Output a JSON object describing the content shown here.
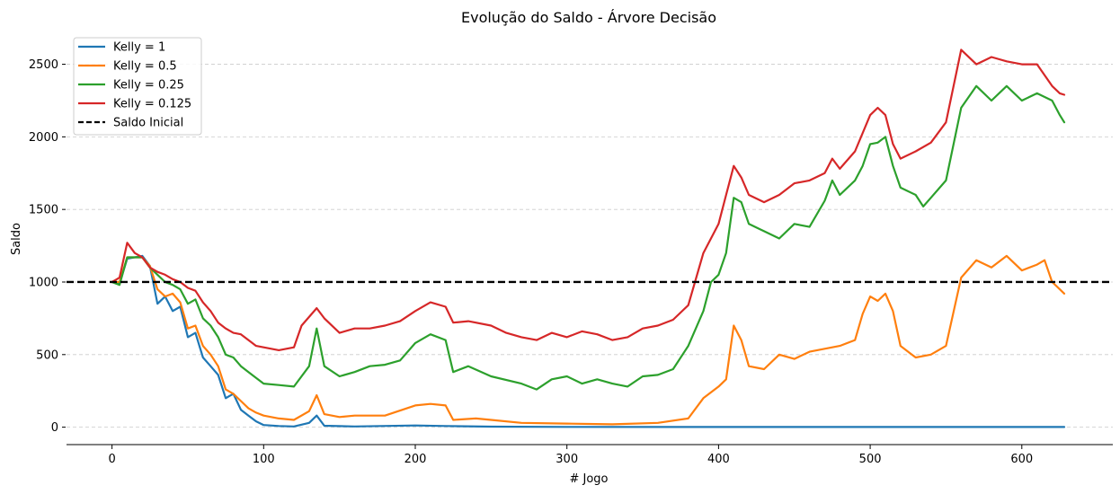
{
  "chart_data": {
    "type": "line",
    "title": "Evolução do Saldo - Árvore Decisão",
    "xlabel": "# Jogo",
    "ylabel": "Saldo",
    "xlim": [
      -30,
      660
    ],
    "ylim": [
      -120,
      2720
    ],
    "xticks": [
      0,
      100,
      200,
      300,
      400,
      500,
      600
    ],
    "yticks": [
      0,
      500,
      1000,
      1500,
      2000,
      2500
    ],
    "grid": "horizontal dashed",
    "legend_position": "top-left",
    "baseline": {
      "name": "Saldo Inicial",
      "value": 1000,
      "color": "#000000",
      "style": "dashed"
    },
    "series": [
      {
        "name": "Kelly = 1",
        "color": "#1f77b4",
        "points": [
          [
            0,
            1000
          ],
          [
            5,
            990
          ],
          [
            10,
            1160
          ],
          [
            20,
            1180
          ],
          [
            25,
            1110
          ],
          [
            30,
            850
          ],
          [
            35,
            900
          ],
          [
            40,
            800
          ],
          [
            45,
            830
          ],
          [
            50,
            620
          ],
          [
            55,
            650
          ],
          [
            60,
            480
          ],
          [
            65,
            420
          ],
          [
            70,
            360
          ],
          [
            75,
            200
          ],
          [
            80,
            230
          ],
          [
            85,
            120
          ],
          [
            90,
            80
          ],
          [
            95,
            40
          ],
          [
            100,
            15
          ],
          [
            110,
            8
          ],
          [
            120,
            5
          ],
          [
            130,
            30
          ],
          [
            135,
            80
          ],
          [
            140,
            10
          ],
          [
            160,
            5
          ],
          [
            200,
            12
          ],
          [
            220,
            8
          ],
          [
            250,
            4
          ],
          [
            300,
            2
          ],
          [
            400,
            1
          ],
          [
            500,
            1
          ],
          [
            628,
            1
          ]
        ]
      },
      {
        "name": "Kelly = 0.5",
        "color": "#ff7f0e",
        "points": [
          [
            0,
            1000
          ],
          [
            5,
            1000
          ],
          [
            10,
            1170
          ],
          [
            20,
            1170
          ],
          [
            25,
            1110
          ],
          [
            30,
            950
          ],
          [
            35,
            900
          ],
          [
            40,
            920
          ],
          [
            45,
            860
          ],
          [
            50,
            680
          ],
          [
            55,
            700
          ],
          [
            60,
            560
          ],
          [
            65,
            500
          ],
          [
            70,
            420
          ],
          [
            75,
            260
          ],
          [
            80,
            230
          ],
          [
            85,
            180
          ],
          [
            90,
            130
          ],
          [
            95,
            100
          ],
          [
            100,
            80
          ],
          [
            110,
            60
          ],
          [
            120,
            50
          ],
          [
            130,
            110
          ],
          [
            135,
            220
          ],
          [
            140,
            90
          ],
          [
            150,
            70
          ],
          [
            160,
            80
          ],
          [
            180,
            80
          ],
          [
            200,
            150
          ],
          [
            210,
            160
          ],
          [
            220,
            150
          ],
          [
            225,
            50
          ],
          [
            240,
            60
          ],
          [
            250,
            50
          ],
          [
            270,
            30
          ],
          [
            300,
            25
          ],
          [
            330,
            20
          ],
          [
            360,
            30
          ],
          [
            380,
            60
          ],
          [
            390,
            200
          ],
          [
            400,
            280
          ],
          [
            405,
            330
          ],
          [
            410,
            700
          ],
          [
            415,
            600
          ],
          [
            420,
            420
          ],
          [
            430,
            400
          ],
          [
            440,
            500
          ],
          [
            450,
            470
          ],
          [
            460,
            520
          ],
          [
            470,
            540
          ],
          [
            480,
            560
          ],
          [
            490,
            600
          ],
          [
            495,
            780
          ],
          [
            500,
            900
          ],
          [
            505,
            870
          ],
          [
            510,
            920
          ],
          [
            515,
            800
          ],
          [
            520,
            560
          ],
          [
            530,
            480
          ],
          [
            540,
            500
          ],
          [
            550,
            560
          ],
          [
            560,
            1030
          ],
          [
            570,
            1150
          ],
          [
            580,
            1100
          ],
          [
            590,
            1180
          ],
          [
            600,
            1080
          ],
          [
            610,
            1120
          ],
          [
            615,
            1150
          ],
          [
            620,
            1000
          ],
          [
            625,
            950
          ],
          [
            628,
            920
          ]
        ]
      },
      {
        "name": "Kelly = 0.25",
        "color": "#2ca02c",
        "points": [
          [
            0,
            1000
          ],
          [
            5,
            980
          ],
          [
            10,
            1170
          ],
          [
            20,
            1170
          ],
          [
            25,
            1100
          ],
          [
            30,
            1050
          ],
          [
            35,
            1000
          ],
          [
            40,
            980
          ],
          [
            45,
            950
          ],
          [
            50,
            850
          ],
          [
            55,
            880
          ],
          [
            60,
            750
          ],
          [
            65,
            700
          ],
          [
            70,
            620
          ],
          [
            75,
            500
          ],
          [
            80,
            480
          ],
          [
            85,
            420
          ],
          [
            90,
            380
          ],
          [
            95,
            340
          ],
          [
            100,
            300
          ],
          [
            110,
            290
          ],
          [
            120,
            280
          ],
          [
            130,
            420
          ],
          [
            135,
            680
          ],
          [
            140,
            420
          ],
          [
            150,
            350
          ],
          [
            160,
            380
          ],
          [
            170,
            420
          ],
          [
            180,
            430
          ],
          [
            190,
            460
          ],
          [
            200,
            580
          ],
          [
            210,
            640
          ],
          [
            220,
            600
          ],
          [
            225,
            380
          ],
          [
            235,
            420
          ],
          [
            250,
            350
          ],
          [
            270,
            300
          ],
          [
            280,
            260
          ],
          [
            290,
            330
          ],
          [
            300,
            350
          ],
          [
            310,
            300
          ],
          [
            320,
            330
          ],
          [
            330,
            300
          ],
          [
            340,
            280
          ],
          [
            350,
            350
          ],
          [
            360,
            360
          ],
          [
            370,
            400
          ],
          [
            380,
            560
          ],
          [
            390,
            800
          ],
          [
            395,
            1000
          ],
          [
            400,
            1050
          ],
          [
            405,
            1200
          ],
          [
            410,
            1580
          ],
          [
            415,
            1550
          ],
          [
            420,
            1400
          ],
          [
            430,
            1350
          ],
          [
            440,
            1300
          ],
          [
            450,
            1400
          ],
          [
            460,
            1380
          ],
          [
            470,
            1560
          ],
          [
            475,
            1700
          ],
          [
            480,
            1600
          ],
          [
            490,
            1700
          ],
          [
            495,
            1800
          ],
          [
            500,
            1950
          ],
          [
            505,
            1960
          ],
          [
            510,
            2000
          ],
          [
            515,
            1800
          ],
          [
            520,
            1650
          ],
          [
            530,
            1600
          ],
          [
            535,
            1520
          ],
          [
            540,
            1580
          ],
          [
            550,
            1700
          ],
          [
            560,
            2200
          ],
          [
            570,
            2350
          ],
          [
            580,
            2250
          ],
          [
            590,
            2350
          ],
          [
            600,
            2250
          ],
          [
            610,
            2300
          ],
          [
            620,
            2250
          ],
          [
            625,
            2150
          ],
          [
            628,
            2100
          ]
        ]
      },
      {
        "name": "Kelly = 0.125",
        "color": "#d62728",
        "points": [
          [
            0,
            1000
          ],
          [
            5,
            1030
          ],
          [
            10,
            1270
          ],
          [
            15,
            1200
          ],
          [
            20,
            1170
          ],
          [
            25,
            1100
          ],
          [
            30,
            1070
          ],
          [
            35,
            1050
          ],
          [
            40,
            1020
          ],
          [
            45,
            1000
          ],
          [
            50,
            960
          ],
          [
            55,
            940
          ],
          [
            60,
            860
          ],
          [
            65,
            800
          ],
          [
            70,
            720
          ],
          [
            75,
            680
          ],
          [
            80,
            650
          ],
          [
            85,
            640
          ],
          [
            90,
            600
          ],
          [
            95,
            560
          ],
          [
            100,
            550
          ],
          [
            110,
            530
          ],
          [
            120,
            550
          ],
          [
            125,
            700
          ],
          [
            135,
            820
          ],
          [
            140,
            750
          ],
          [
            150,
            650
          ],
          [
            160,
            680
          ],
          [
            170,
            680
          ],
          [
            180,
            700
          ],
          [
            190,
            730
          ],
          [
            200,
            800
          ],
          [
            210,
            860
          ],
          [
            220,
            830
          ],
          [
            225,
            720
          ],
          [
            235,
            730
          ],
          [
            250,
            700
          ],
          [
            260,
            650
          ],
          [
            270,
            620
          ],
          [
            280,
            600
          ],
          [
            290,
            650
          ],
          [
            300,
            620
          ],
          [
            310,
            660
          ],
          [
            320,
            640
          ],
          [
            330,
            600
          ],
          [
            340,
            620
          ],
          [
            350,
            680
          ],
          [
            360,
            700
          ],
          [
            370,
            740
          ],
          [
            380,
            840
          ],
          [
            390,
            1200
          ],
          [
            400,
            1400
          ],
          [
            405,
            1600
          ],
          [
            410,
            1800
          ],
          [
            415,
            1720
          ],
          [
            420,
            1600
          ],
          [
            430,
            1550
          ],
          [
            440,
            1600
          ],
          [
            450,
            1680
          ],
          [
            460,
            1700
          ],
          [
            470,
            1750
          ],
          [
            475,
            1850
          ],
          [
            480,
            1780
          ],
          [
            490,
            1900
          ],
          [
            500,
            2150
          ],
          [
            505,
            2200
          ],
          [
            510,
            2150
          ],
          [
            515,
            1950
          ],
          [
            520,
            1850
          ],
          [
            530,
            1900
          ],
          [
            540,
            1960
          ],
          [
            550,
            2100
          ],
          [
            560,
            2600
          ],
          [
            570,
            2500
          ],
          [
            580,
            2550
          ],
          [
            590,
            2520
          ],
          [
            600,
            2500
          ],
          [
            610,
            2500
          ],
          [
            620,
            2350
          ],
          [
            625,
            2300
          ],
          [
            628,
            2290
          ]
        ]
      }
    ]
  }
}
